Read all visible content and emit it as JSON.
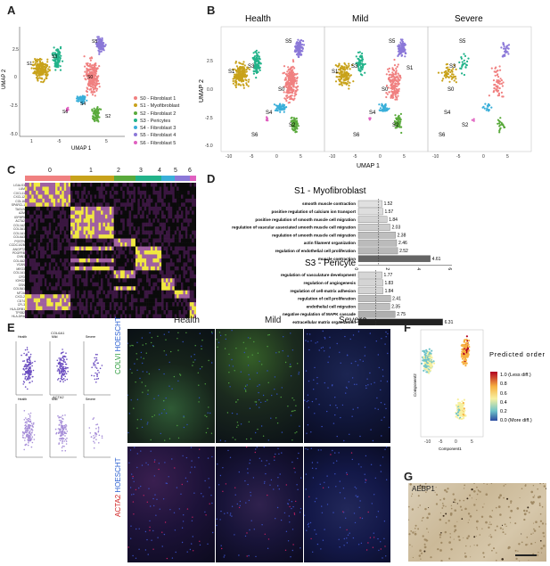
{
  "panels": {
    "A": "A",
    "B": "B",
    "C": "C",
    "D": "D",
    "E": "E",
    "F": "F",
    "G": "G"
  },
  "umap_a": {
    "xlabel": "UMAP 1",
    "ylabel": "UMAP 2",
    "xticks": [
      "1",
      "-5",
      "5"
    ],
    "yticks": [
      "2.5",
      "0",
      "-2.5",
      "-5.0"
    ],
    "clusters": [
      {
        "id": "S0",
        "name": "S0 - Fibroblast 1",
        "color": "#f08080"
      },
      {
        "id": "S1",
        "name": "S1 - Myofibroblast",
        "color": "#c8a21b"
      },
      {
        "id": "S2",
        "name": "S2 - Fibroblast 2",
        "color": "#5aaa3c"
      },
      {
        "id": "S3",
        "name": "S3 - Pericytes",
        "color": "#22b38a"
      },
      {
        "id": "S4",
        "name": "S4 - Fibroblast 3",
        "color": "#3aafd9"
      },
      {
        "id": "S5",
        "name": "S5 - Fibroblast 4",
        "color": "#8b78d8"
      },
      {
        "id": "S6",
        "name": "S6 - Fibroblast 5",
        "color": "#e060c0"
      }
    ]
  },
  "umap_b": {
    "titles": [
      "Health",
      "Mild",
      "Severe"
    ],
    "xlabel": "UMAP 1",
    "ylabel": "UMAP 2",
    "xticks": [
      "-10",
      "-5",
      "0",
      "5"
    ],
    "yticks": [
      "2.5",
      "0.0",
      "-2.5",
      "-5.0"
    ]
  },
  "heatmap_c": {
    "cluster_labels": [
      "0",
      "1",
      "2",
      "3",
      "4",
      "5",
      "6"
    ],
    "genes": [
      "LGALS3",
      "LUM",
      "CXCL11",
      "CXCL12",
      "COL16",
      "SPARCL1",
      "TAGLN",
      "A2M",
      "IGFBP5",
      "ACTA2",
      "COL1A2",
      "COL3A1",
      "COL1A1",
      "COL6A3",
      "POSTN",
      "CCDC102B",
      "ANGPT2",
      "PDGFRB",
      "CNN1",
      "COL4A2",
      "VCAN",
      "MEG3",
      "COL1A1",
      "CFD",
      "IGHG2",
      "GSN",
      "COL5A1",
      "MT2A",
      "CXCL2",
      "CD74",
      "CFL3",
      "HLA-DRB1",
      "TPSB2",
      "HLA-DRA"
    ]
  },
  "chart_data": [
    {
      "type": "bar",
      "title": "S1 - Myofibroblast",
      "categories": [
        "smooth muscle contraction",
        "positive regulation of calcium ion transport",
        "positive regulation of smooth muscle cell migration",
        "regulation of vascular associated smooth muscle cell migration",
        "regulation of smooth muscle cell migration",
        "actin filament organization",
        "regulation of endothelial cell proliferation",
        "muscle contraction"
      ],
      "values": [
        1.52,
        1.57,
        1.84,
        2.03,
        2.38,
        2.46,
        2.52,
        4.61
      ],
      "value_labels": [
        "1.52",
        "1.57",
        "1.84",
        "2.03",
        "2.38",
        "2.46",
        "2.52",
        "4.61"
      ],
      "xticks": [
        "0",
        "2",
        "4",
        "6"
      ],
      "xlim": [
        0,
        6
      ]
    },
    {
      "type": "bar",
      "title": "S3 - Pericyte",
      "categories": [
        "regulation of vasculature development",
        "regulation of angiogenesis",
        "regulation of cell-matrix adhesion",
        "regulation of cell proliferation",
        "endothelial cell migration",
        "negative regulation of MAPK cascade",
        "extracellular matrix organization"
      ],
      "values": [
        1.77,
        1.83,
        1.84,
        2.41,
        2.35,
        2.75,
        6.31
      ],
      "value_labels": [
        "1.77",
        "1.83",
        "1.84",
        "2.41",
        "2.35",
        "2.75",
        "6.31"
      ],
      "xticks": [
        "0",
        "2",
        "4",
        "6"
      ],
      "xlim": [
        0,
        7
      ]
    }
  ],
  "panel_e": {
    "small_top_title": "COL6A1",
    "small_bottom_title": "ACTA2",
    "small_cols": [
      "Health",
      "Mild",
      "Severe"
    ],
    "col_titles": [
      "Health",
      "Mild",
      "Severe"
    ],
    "row1_label_a": "COLVI",
    "row1_label_b": " HOESCHT",
    "row2_label_a": "ACTA2",
    "row2_label_b": " HOESCHT"
  },
  "panel_f": {
    "legend_title": "Predicted order",
    "legend_items": [
      "1.0 (Less diff.)",
      "0.8",
      "0.6",
      "0.4",
      "0.2",
      "0.0 (More diff.)"
    ],
    "xlabel": "Component1",
    "ylabel": "Component2",
    "xticks": [
      "-10",
      "-5",
      "0",
      "5"
    ]
  },
  "panel_g": {
    "label": "AEBP1"
  }
}
